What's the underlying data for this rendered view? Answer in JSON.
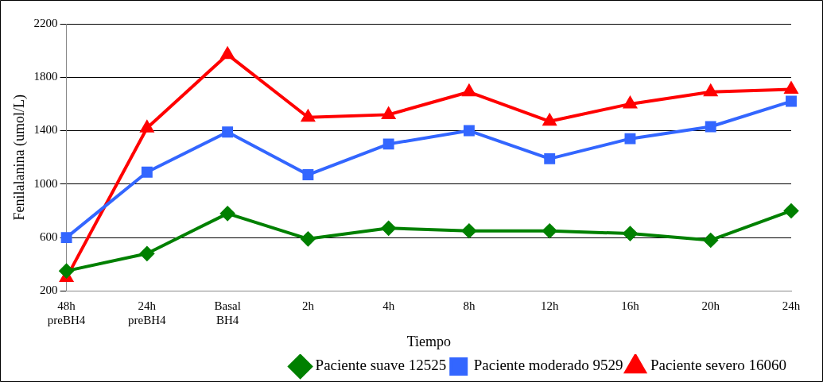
{
  "chart_data": {
    "type": "line",
    "xlabel": "Tiempo",
    "ylabel": "Fenilalanina (umol/L)",
    "categories": [
      "48h preBH4",
      "24h preBH4",
      "Basal BH4",
      "2h",
      "4h",
      "8h",
      "12h",
      "16h",
      "20h",
      "24h"
    ],
    "series": [
      {
        "name": "Paciente suave 12525",
        "color": "#008000",
        "marker": "diamond",
        "values": [
          350,
          480,
          780,
          590,
          670,
          650,
          650,
          630,
          580,
          800
        ]
      },
      {
        "name": "Paciente moderado 9529",
        "color": "#3366ff",
        "marker": "square",
        "values": [
          600,
          1090,
          1390,
          1070,
          1300,
          1400,
          1190,
          1340,
          1430,
          1620
        ]
      },
      {
        "name": "Paciente severo 16060",
        "color": "#ff0000",
        "marker": "triangle",
        "values": [
          300,
          1420,
          1970,
          1500,
          1520,
          1690,
          1470,
          1600,
          1690,
          1710
        ]
      }
    ],
    "ylim": [
      200,
      2200
    ],
    "yticks": [
      200,
      600,
      1000,
      1400,
      1800,
      2200
    ],
    "grid": "y",
    "legend": "bottom right",
    "line_style": "solid"
  }
}
